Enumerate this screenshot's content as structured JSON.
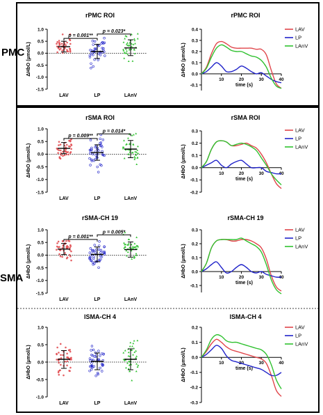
{
  "section_labels": [
    "PMC",
    "SMA"
  ],
  "colors": {
    "LAV": "#e0454a",
    "LP": "#1f22c9",
    "LAnV": "#2fc12f"
  },
  "chart_data": [
    {
      "type": "scatter",
      "id": "pmc-roi-dot",
      "title": "rPMC ROI",
      "ylabel": "ΔHbO (μmol/L)",
      "ylim": [
        -1.5,
        1.0
      ],
      "yticks": [
        1.0,
        0.5,
        0.0,
        -0.5,
        -1.0,
        -1.5
      ],
      "categories": [
        "LAV",
        "LP",
        "LAnV"
      ],
      "series": [
        {
          "name": "LAV",
          "mean": 0.27,
          "sd_upper": 0.5,
          "sd_lower": 0.05,
          "spread": 0.21
        },
        {
          "name": "LP",
          "mean": 0.07,
          "sd_upper": 0.37,
          "sd_lower": -0.22,
          "spread": 0.27
        },
        {
          "name": "LAnV",
          "mean": 0.22,
          "sd_upper": 0.56,
          "sd_lower": -0.1,
          "spread": 0.3
        }
      ],
      "comparisons": [
        {
          "pair": [
            "LAV",
            "LP"
          ],
          "label": "p = 0.001**",
          "y": 0.62
        },
        {
          "pair": [
            "LP",
            "LAnV"
          ],
          "label": "p = 0.023*",
          "y": 0.8
        }
      ]
    },
    {
      "type": "line",
      "id": "pmc-roi-line",
      "title": "rPMC ROI",
      "xlabel": "time (s)",
      "ylabel": "ΔHbO (μmol/L)",
      "xlim": [
        0,
        40
      ],
      "ylim": [
        -0.15,
        0.4
      ],
      "xticks": [
        10,
        20,
        30,
        40
      ],
      "yticks": [
        0.4,
        0.3,
        0.2,
        0.1,
        0.0,
        -0.1
      ],
      "x": [
        0,
        2.5,
        5,
        7.5,
        10,
        12.5,
        15,
        17.5,
        20,
        22.5,
        25,
        27.5,
        30,
        32.5,
        35,
        37.5,
        40
      ],
      "series": [
        {
          "name": "LAV",
          "values": [
            0.0,
            0.06,
            0.18,
            0.27,
            0.29,
            0.27,
            0.24,
            0.23,
            0.23,
            0.23,
            0.23,
            0.22,
            0.22,
            0.17,
            0.03,
            -0.09,
            -0.13
          ]
        },
        {
          "name": "LP",
          "values": [
            0.0,
            0.02,
            0.06,
            0.1,
            0.07,
            0.02,
            0.02,
            0.04,
            0.07,
            0.05,
            0.02,
            0.0,
            0.01,
            -0.02,
            -0.05,
            -0.07,
            -0.08
          ]
        },
        {
          "name": "LAnV",
          "values": [
            0.0,
            0.05,
            0.15,
            0.23,
            0.26,
            0.24,
            0.21,
            0.2,
            0.2,
            0.18,
            0.16,
            0.15,
            0.12,
            0.06,
            -0.04,
            -0.11,
            -0.13
          ]
        }
      ]
    },
    {
      "type": "scatter",
      "id": "sma-roi-dot",
      "title": "rSMA ROI",
      "ylabel": "ΔHbO (μmol/L)",
      "ylim": [
        -1.5,
        1.0
      ],
      "yticks": [
        1.0,
        0.5,
        0.0,
        -0.5,
        -1.0,
        -1.5
      ],
      "categories": [
        "LAV",
        "LP",
        "LAnV"
      ],
      "series": [
        {
          "name": "LAV",
          "mean": 0.23,
          "sd_upper": 0.46,
          "sd_lower": 0.02,
          "spread": 0.2
        },
        {
          "name": "LP",
          "mean": 0.06,
          "sd_upper": 0.37,
          "sd_lower": -0.24,
          "spread": 0.28
        },
        {
          "name": "LAnV",
          "mean": 0.2,
          "sd_upper": 0.54,
          "sd_lower": -0.14,
          "spread": 0.3
        }
      ],
      "comparisons": [
        {
          "pair": [
            "LAV",
            "LP"
          ],
          "label": "p = 0.009**",
          "y": 0.62
        },
        {
          "pair": [
            "LP",
            "LAnV"
          ],
          "label": "p = 0.014*",
          "y": 0.8
        }
      ]
    },
    {
      "type": "line",
      "id": "sma-roi-line",
      "title": "rSMA ROI",
      "xlabel": "time (s)",
      "ylabel": "ΔHbO (μmol/L)",
      "xlim": [
        0,
        40
      ],
      "ylim": [
        -0.2,
        0.3
      ],
      "xticks": [
        10,
        20,
        30,
        40
      ],
      "yticks": [
        0.3,
        0.2,
        0.1,
        0.0,
        -0.1,
        -0.2
      ],
      "x": [
        0,
        2.5,
        5,
        7.5,
        10,
        12.5,
        15,
        17.5,
        20,
        22.5,
        25,
        27.5,
        30,
        32.5,
        35,
        37.5,
        40
      ],
      "series": [
        {
          "name": "LAV",
          "values": [
            0.0,
            0.05,
            0.15,
            0.21,
            0.22,
            0.21,
            0.18,
            0.18,
            0.19,
            0.2,
            0.18,
            0.16,
            0.11,
            0.04,
            -0.05,
            -0.13,
            -0.17
          ]
        },
        {
          "name": "LP",
          "values": [
            0.0,
            0.02,
            0.04,
            0.06,
            0.02,
            0.0,
            0.03,
            0.05,
            0.06,
            0.03,
            0.0,
            0.0,
            0.0,
            -0.03,
            -0.04,
            -0.05,
            -0.05
          ]
        },
        {
          "name": "LAnV",
          "values": [
            0.0,
            0.05,
            0.15,
            0.21,
            0.22,
            0.21,
            0.18,
            0.19,
            0.2,
            0.19,
            0.17,
            0.14,
            0.08,
            0.02,
            -0.05,
            -0.1,
            -0.14
          ]
        }
      ]
    },
    {
      "type": "scatter",
      "id": "sma-ch19-dot",
      "title": "rSMA-CH 19",
      "ylabel": "ΔHbO (μmol/L)",
      "ylim": [
        -1.5,
        1.0
      ],
      "yticks": [
        1.0,
        0.5,
        0.0,
        -0.5,
        -1.0,
        -1.5
      ],
      "categories": [
        "LAV",
        "LP",
        "LAnV"
      ],
      "series": [
        {
          "name": "LAV",
          "mean": 0.24,
          "sd_upper": 0.46,
          "sd_lower": 0.02,
          "spread": 0.21
        },
        {
          "name": "LP",
          "mean": 0.03,
          "sd_upper": 0.32,
          "sd_lower": -0.26,
          "spread": 0.28
        },
        {
          "name": "LAnV",
          "mean": 0.22,
          "sd_upper": 0.52,
          "sd_lower": -0.08,
          "spread": 0.28
        }
      ],
      "comparisons": [
        {
          "pair": [
            "LAV",
            "LP"
          ],
          "label": "p = 0.001**",
          "y": 0.62
        },
        {
          "pair": [
            "LP",
            "LAnV"
          ],
          "label": "p = 0.005*",
          "y": 0.8
        }
      ]
    },
    {
      "type": "line",
      "id": "sma-ch19-line",
      "title": "rSMA-CH 19",
      "xlabel": "time (s)",
      "ylabel": "ΔHbO (μmol/L)",
      "xlim": [
        0,
        40
      ],
      "ylim": [
        -0.15,
        0.3
      ],
      "xticks": [
        10,
        20,
        30,
        40
      ],
      "yticks": [
        0.3,
        0.2,
        0.1,
        0.0,
        -0.1
      ],
      "x": [
        0,
        2.5,
        5,
        7.5,
        10,
        12.5,
        15,
        17.5,
        20,
        22.5,
        25,
        27.5,
        30,
        32.5,
        35,
        37.5,
        40
      ],
      "series": [
        {
          "name": "LAV",
          "values": [
            0.0,
            0.06,
            0.17,
            0.22,
            0.23,
            0.23,
            0.22,
            0.22,
            0.23,
            0.23,
            0.22,
            0.2,
            0.17,
            0.09,
            -0.03,
            -0.11,
            -0.14
          ]
        },
        {
          "name": "LP",
          "values": [
            0.0,
            0.02,
            0.05,
            0.07,
            0.03,
            -0.01,
            0.0,
            0.03,
            0.05,
            0.03,
            0.0,
            -0.01,
            0.0,
            -0.02,
            -0.03,
            -0.04,
            -0.04
          ]
        },
        {
          "name": "LAnV",
          "values": [
            0.0,
            0.06,
            0.17,
            0.22,
            0.23,
            0.23,
            0.23,
            0.23,
            0.24,
            0.22,
            0.2,
            0.18,
            0.14,
            0.05,
            -0.06,
            -0.13,
            -0.16
          ]
        }
      ]
    },
    {
      "type": "scatter",
      "id": "sma-ch4-dot",
      "title": "lSMA-CH 4",
      "ylabel": "ΔHbO (μmol/L)",
      "ylim": [
        -1.0,
        1.0
      ],
      "yticks": [
        1.0,
        0.5,
        0.0,
        -0.5,
        -1.0
      ],
      "categories": [
        "LAV",
        "LP",
        "LAnV"
      ],
      "series": [
        {
          "name": "LAV",
          "mean": 0.08,
          "sd_upper": 0.33,
          "sd_lower": -0.18,
          "spread": 0.26
        },
        {
          "name": "LP",
          "mean": 0.02,
          "sd_upper": 0.26,
          "sd_lower": -0.22,
          "spread": 0.24
        },
        {
          "name": "LAnV",
          "mean": 0.08,
          "sd_upper": 0.38,
          "sd_lower": -0.22,
          "spread": 0.29
        }
      ],
      "comparisons": []
    },
    {
      "type": "line",
      "id": "sma-ch4-line",
      "title": "lSMA-CH 4",
      "xlabel": "time (s)",
      "ylabel": "ΔHbO (μmol/L)",
      "xlim": [
        0,
        40
      ],
      "ylim": [
        -0.3,
        0.2
      ],
      "xticks": [
        10,
        20,
        30,
        40
      ],
      "yticks": [
        0.2,
        0.1,
        0.0,
        -0.1,
        -0.2,
        -0.3
      ],
      "x": [
        0,
        2.5,
        5,
        7.5,
        10,
        12.5,
        15,
        17.5,
        20,
        22.5,
        25,
        27.5,
        30,
        32.5,
        35,
        37.5,
        40
      ],
      "series": [
        {
          "name": "LAV",
          "values": [
            0.0,
            0.04,
            0.09,
            0.12,
            0.1,
            0.07,
            0.05,
            0.04,
            0.03,
            0.02,
            0.01,
            0.0,
            -0.01,
            -0.04,
            -0.12,
            -0.22,
            -0.26
          ]
        },
        {
          "name": "LP",
          "values": [
            0.0,
            0.02,
            0.05,
            0.08,
            0.06,
            0.01,
            -0.02,
            -0.03,
            -0.04,
            -0.05,
            -0.06,
            -0.07,
            -0.08,
            -0.1,
            -0.12,
            -0.12,
            -0.1
          ]
        },
        {
          "name": "LAnV",
          "values": [
            0.0,
            0.05,
            0.12,
            0.15,
            0.14,
            0.11,
            0.1,
            0.1,
            0.09,
            0.08,
            0.07,
            0.06,
            0.05,
            0.02,
            -0.05,
            -0.15,
            -0.21
          ]
        }
      ]
    }
  ]
}
